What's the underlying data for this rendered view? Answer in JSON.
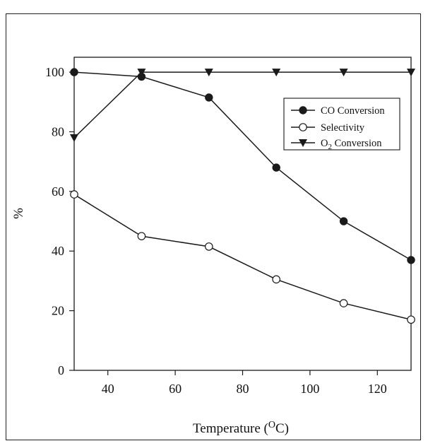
{
  "chart_data": {
    "type": "line",
    "xlabel": "Temperature (",
    "xlabel_sup": "O",
    "xlabel_end": "C)",
    "ylabel": "%",
    "xlim": [
      30,
      130
    ],
    "ylim": [
      0,
      105
    ],
    "x_ticks": [
      40,
      60,
      80,
      100,
      120
    ],
    "y_ticks": [
      0,
      20,
      40,
      60,
      80,
      100
    ],
    "grid": false,
    "legend_position": "top-right",
    "series": [
      {
        "name": "CO Conversion",
        "marker": "filled-circle",
        "x": [
          30,
          50,
          70,
          90,
          110,
          130
        ],
        "values": [
          100,
          98.5,
          91.5,
          68,
          50,
          37
        ]
      },
      {
        "name": "Selectivity",
        "marker": "open-circle",
        "x": [
          30,
          50,
          70,
          90,
          110,
          130
        ],
        "values": [
          59,
          45,
          41.5,
          30.5,
          22.5,
          17
        ]
      },
      {
        "name": "O2 Conversion",
        "legend_label": {
          "pre": "O",
          "sub": "2",
          "post": " Conversion"
        },
        "marker": "filled-triangle-down",
        "x": [
          30,
          50,
          70,
          90,
          110,
          130
        ],
        "values": [
          78,
          100,
          100,
          100,
          100,
          100
        ]
      }
    ]
  },
  "colors": {
    "line": "#1a1a1a",
    "background": "#ffffff"
  }
}
